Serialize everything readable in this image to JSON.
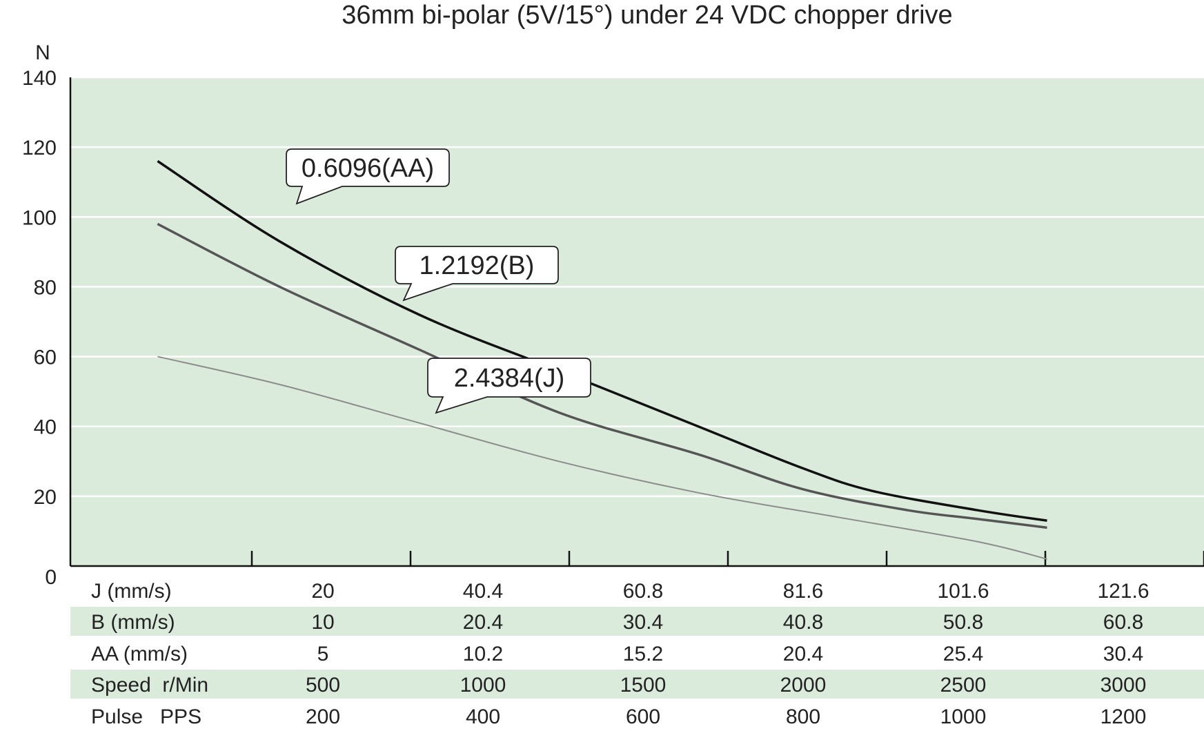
{
  "chart_data": {
    "type": "line",
    "title": "36mm bi-polar (5V/15°) under 24 VDC chopper drive",
    "ylabel": "N",
    "ylim": [
      0,
      140
    ],
    "yticks": [
      0,
      20,
      40,
      60,
      80,
      100,
      120,
      140
    ],
    "grid": true,
    "colors": {
      "plot_bg": "#dbebdb",
      "stripe": "#dbebdb",
      "gridline": "#ffffff",
      "axis": "#111111"
    },
    "x_table": {
      "rows": [
        {
          "label": "J (mm/s)",
          "values": [
            "20",
            "40.4",
            "60.8",
            "81.6",
            "101.6",
            "121.6"
          ],
          "striped": false
        },
        {
          "label": "B (mm/s)",
          "values": [
            "10",
            "20.4",
            "30.4",
            "40.8",
            "50.8",
            "60.8"
          ],
          "striped": true
        },
        {
          "label": "AA (mm/s)",
          "values": [
            "5",
            "10.2",
            "15.2",
            "20.4",
            "25.4",
            "30.4"
          ],
          "striped": false
        },
        {
          "label": "Speed  r/Min",
          "values": [
            "500",
            "1000",
            "1500",
            "2000",
            "2500",
            "3000"
          ],
          "striped": true
        },
        {
          "label": "Pulse   PPS",
          "values": [
            "200",
            "400",
            "600",
            "800",
            "1000",
            "1200"
          ],
          "striped": false
        }
      ]
    },
    "x_unit_row": "Speed  r/Min",
    "xlim": [
      0,
      3250
    ],
    "series": [
      {
        "name": "0.6096(AA)",
        "color": "#111111",
        "width": 3.5,
        "points": [
          [
            250,
            116
          ],
          [
            600,
            93
          ],
          [
            1000,
            72
          ],
          [
            1400,
            56
          ],
          [
            1800,
            40
          ],
          [
            2100,
            28
          ],
          [
            2300,
            21.5
          ],
          [
            2600,
            16
          ],
          [
            2800,
            13
          ]
        ]
      },
      {
        "name": "1.2192(B)",
        "color": "#555555",
        "width": 3.5,
        "points": [
          [
            250,
            98
          ],
          [
            600,
            80
          ],
          [
            1000,
            62
          ],
          [
            1400,
            44
          ],
          [
            1800,
            32
          ],
          [
            2100,
            22
          ],
          [
            2400,
            16
          ],
          [
            2600,
            13.5
          ],
          [
            2800,
            11
          ]
        ]
      },
      {
        "name": "2.4384(J)",
        "color": "#8c8c8c",
        "width": 2,
        "points": [
          [
            250,
            60
          ],
          [
            600,
            52
          ],
          [
            1000,
            41
          ],
          [
            1400,
            30
          ],
          [
            1800,
            21
          ],
          [
            2200,
            14
          ],
          [
            2600,
            7
          ],
          [
            2800,
            2
          ]
        ]
      }
    ],
    "callouts": [
      {
        "text": "0.6096(AA)",
        "series": 0
      },
      {
        "text": "1.2192(B)",
        "series": 1
      },
      {
        "text": "2.4384(J)",
        "series": 2
      }
    ]
  }
}
